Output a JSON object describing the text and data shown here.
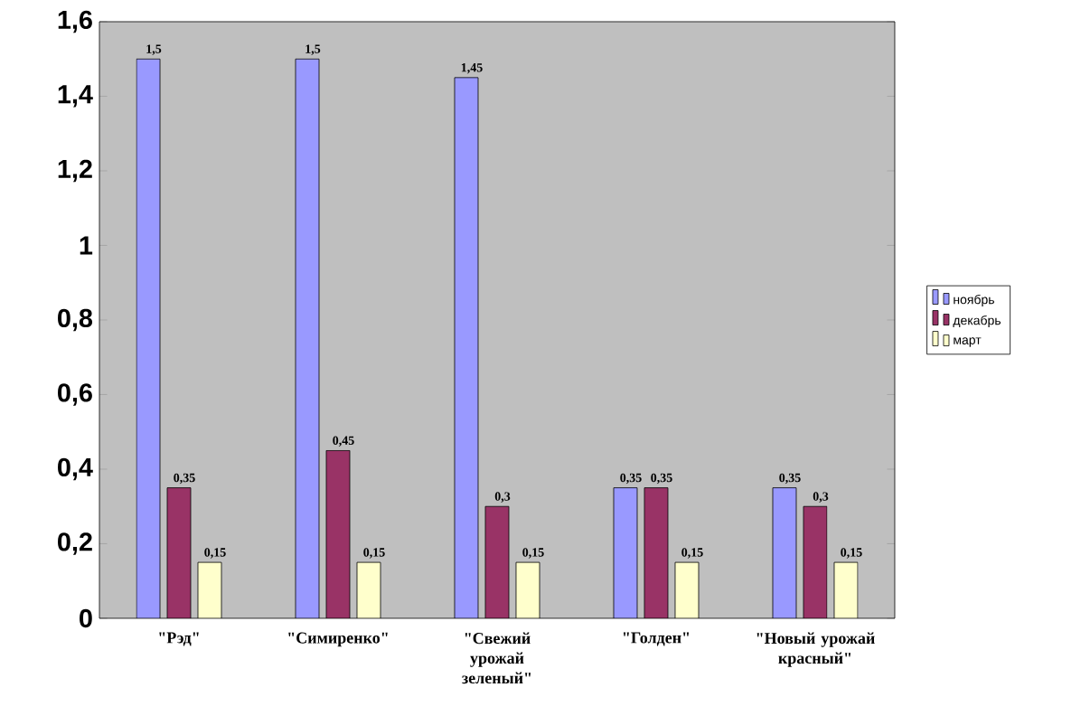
{
  "chart_data": {
    "type": "bar",
    "categories": [
      "\"Рэд\"",
      "\"Симиренко\"",
      "\"Свежий урожай зеленый\"",
      "\"Голден\"",
      "\"Новый урожай красный\""
    ],
    "series": [
      {
        "name": "ноябрь",
        "color": "#9999ff",
        "values": [
          1.5,
          1.5,
          1.45,
          0.35,
          0.35
        ],
        "value_labels": [
          "1,5",
          "1,5",
          "1,45",
          "0,35",
          "0,35"
        ]
      },
      {
        "name": "декабрь",
        "color": "#993366",
        "values": [
          0.35,
          0.45,
          0.3,
          0.35,
          0.3
        ],
        "value_labels": [
          "0,35",
          "0,45",
          "0,3",
          "0,35",
          "0,3"
        ]
      },
      {
        "name": "март",
        "color": "#ffffcc",
        "values": [
          0.15,
          0.15,
          0.15,
          0.15,
          0.15
        ],
        "value_labels": [
          "0,15",
          "0,15",
          "0,15",
          "0,15",
          "0,15"
        ]
      }
    ],
    "ylim": [
      0,
      1.6
    ],
    "yticks": [
      {
        "value": 0,
        "label": "0"
      },
      {
        "value": 0.2,
        "label": "0,2"
      },
      {
        "value": 0.4,
        "label": "0,4"
      },
      {
        "value": 0.6,
        "label": "0,6"
      },
      {
        "value": 0.8,
        "label": "0,8"
      },
      {
        "value": 1,
        "label": "1"
      },
      {
        "value": 1.2,
        "label": "1,2"
      },
      {
        "value": 1.4,
        "label": "1,4"
      },
      {
        "value": 1.6,
        "label": "1,6"
      }
    ],
    "legend": "right"
  }
}
